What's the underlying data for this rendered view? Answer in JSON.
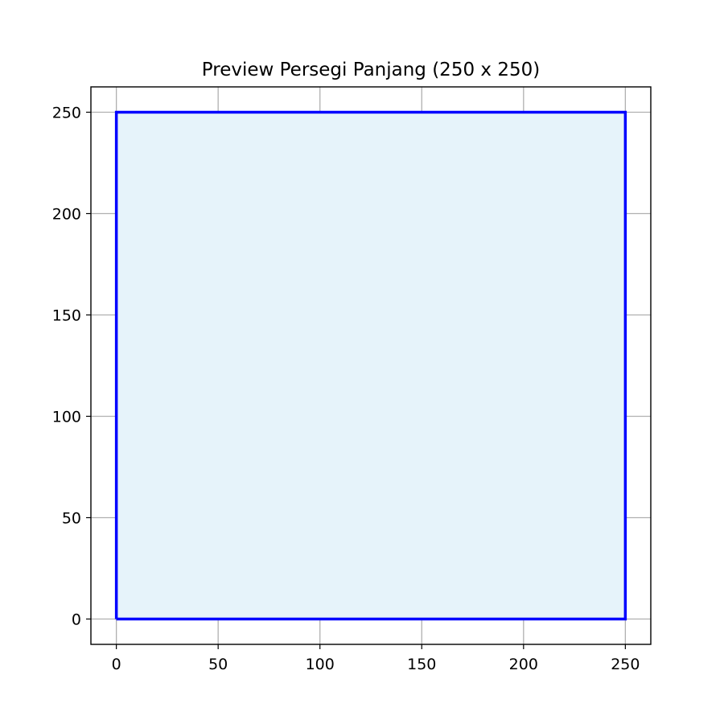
{
  "chart_data": {
    "type": "line",
    "title": "Preview Persegi Panjang (250 x 250)",
    "xlabel": "",
    "ylabel": "",
    "xlim": [
      -12.5,
      262.5
    ],
    "ylim": [
      -12.5,
      262.5
    ],
    "x_ticks": [
      0,
      50,
      100,
      150,
      200,
      250
    ],
    "y_ticks": [
      0,
      50,
      100,
      150,
      200,
      250
    ],
    "grid": true,
    "legend": "none",
    "series": [
      {
        "x": [
          0,
          250,
          250,
          0,
          0
        ],
        "y": [
          0,
          0,
          250,
          250,
          0
        ],
        "color": "#0000ff",
        "fill": "#e6f3fa"
      }
    ]
  }
}
